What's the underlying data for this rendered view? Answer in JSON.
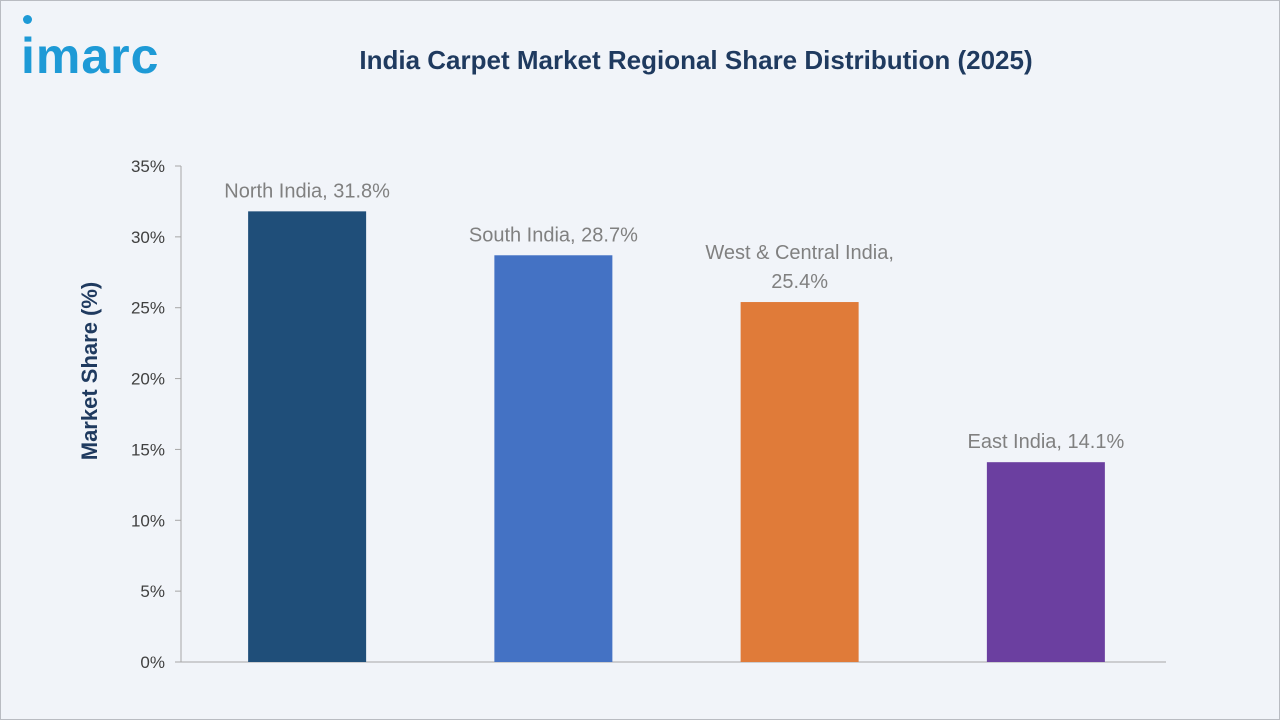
{
  "brand": {
    "logo_text": "imarc",
    "color": "#1e9ad6"
  },
  "chart_data": {
    "type": "bar",
    "title": "India Carpet Market Regional Share Distribution (2025)",
    "ylabel": "Market Share (%)",
    "xlabel": "",
    "ylim": [
      0,
      35
    ],
    "yticks": [
      0,
      5,
      10,
      15,
      20,
      25,
      30,
      35
    ],
    "ytick_labels": [
      "0%",
      "5%",
      "10%",
      "15%",
      "20%",
      "25%",
      "30%",
      "35%"
    ],
    "categories": [
      "North India",
      "South India",
      "West & Central India",
      "East India"
    ],
    "values": [
      31.8,
      28.7,
      25.4,
      14.1
    ],
    "data_labels": [
      [
        "North India, 31.8%"
      ],
      [
        "South India, 28.7%"
      ],
      [
        "West & Central India,",
        "25.4%"
      ],
      [
        "East India, 14.1%"
      ]
    ],
    "colors": [
      "#1f4e79",
      "#4472c4",
      "#e07b39",
      "#6b3fa0"
    ],
    "grid": false,
    "legend": "none"
  }
}
